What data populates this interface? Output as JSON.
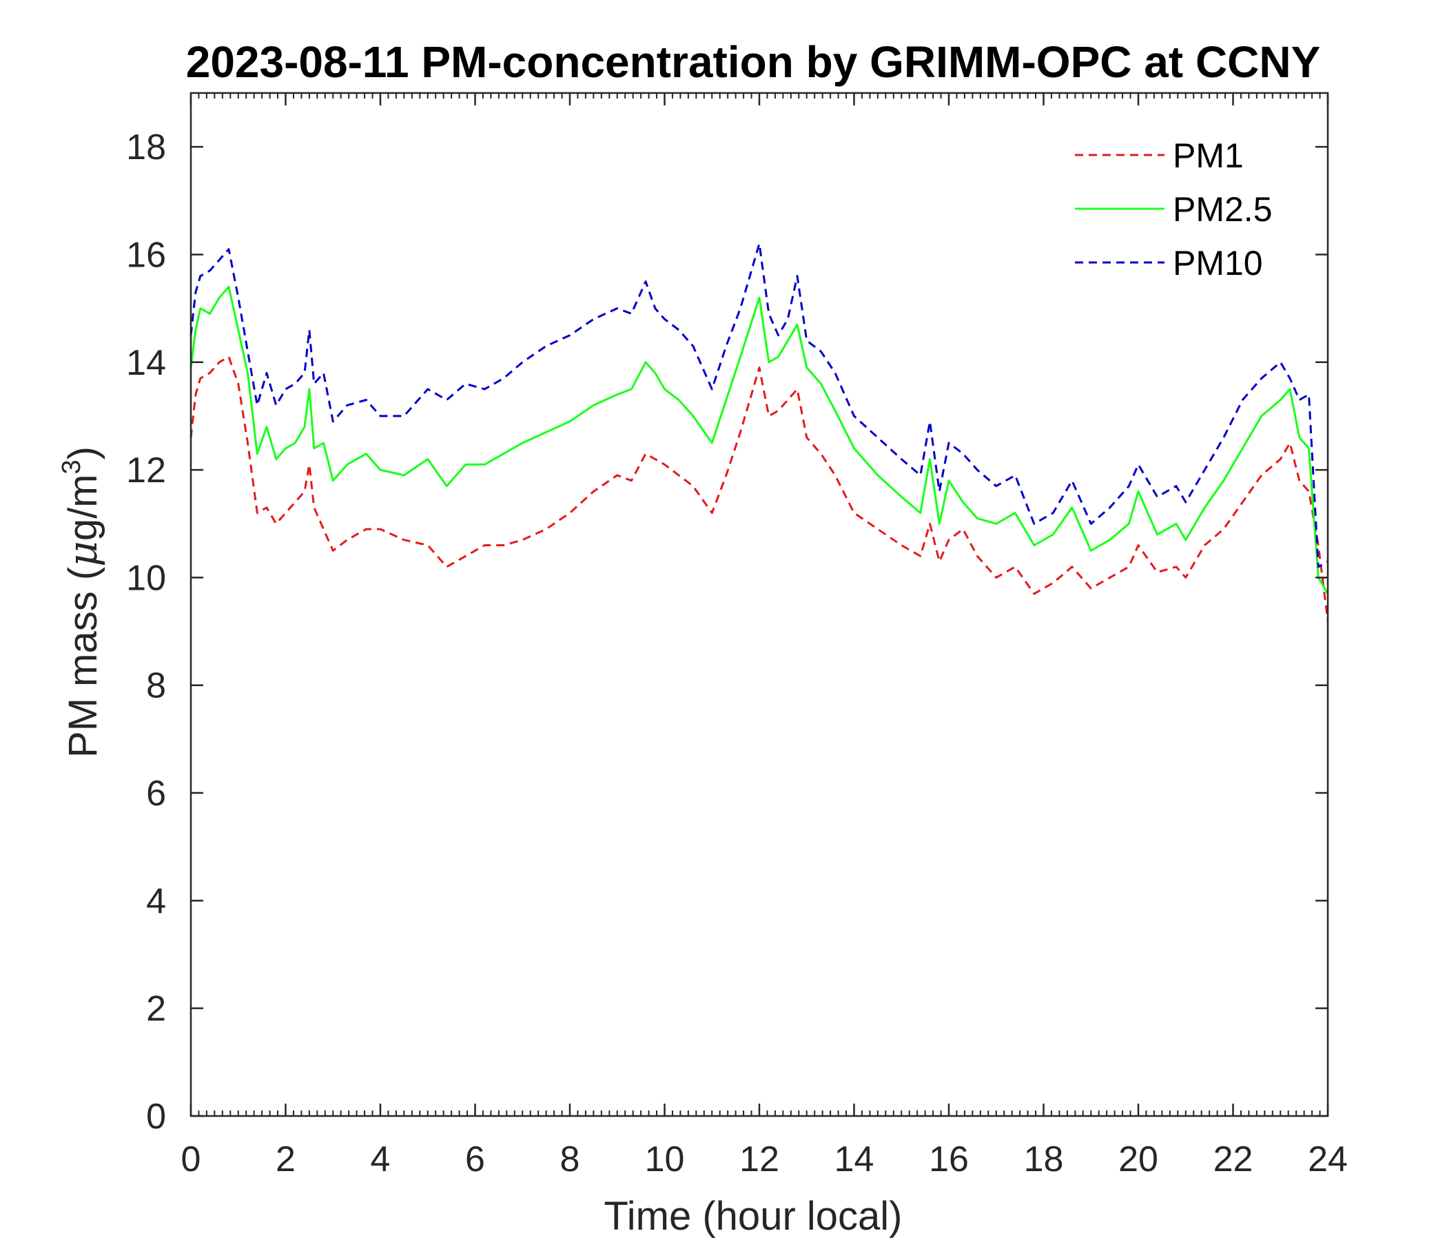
{
  "chart_data": {
    "type": "line",
    "title": "2023-08-11 PM-concentration by GRIMM-OPC at CCNY",
    "xlabel": "Time (hour local)",
    "ylabel_main": "PM mass (",
    "ylabel_mu": "μ",
    "ylabel_unit": "g/m",
    "ylabel_exp": "3",
    "ylabel_close": ")",
    "xlim": [
      0,
      24
    ],
    "ylim": [
      0,
      19
    ],
    "xticks": [
      0,
      2,
      4,
      6,
      8,
      10,
      12,
      14,
      16,
      18,
      20,
      22,
      24
    ],
    "yticks": [
      0,
      2,
      4,
      6,
      8,
      10,
      12,
      14,
      16,
      18
    ],
    "legend_position": "top-right",
    "x": [
      0,
      0.1,
      0.2,
      0.4,
      0.6,
      0.8,
      1.0,
      1.2,
      1.4,
      1.6,
      1.8,
      2.0,
      2.2,
      2.4,
      2.5,
      2.6,
      2.8,
      3.0,
      3.3,
      3.7,
      4.0,
      4.5,
      5.0,
      5.4,
      5.8,
      6.2,
      6.6,
      7.0,
      7.5,
      8.0,
      8.5,
      9.0,
      9.3,
      9.6,
      9.8,
      10.0,
      10.3,
      10.6,
      11.0,
      11.3,
      11.6,
      12.0,
      12.2,
      12.4,
      12.6,
      12.8,
      13.0,
      13.3,
      13.6,
      14.0,
      14.5,
      15.0,
      15.4,
      15.6,
      15.8,
      16.0,
      16.3,
      16.6,
      17.0,
      17.4,
      17.8,
      18.2,
      18.6,
      19.0,
      19.4,
      19.8,
      20.0,
      20.4,
      20.8,
      21.0,
      21.4,
      21.8,
      22.2,
      22.6,
      23.0,
      23.2,
      23.4,
      23.6,
      23.8,
      24.0
    ],
    "series": [
      {
        "name": "PM1",
        "color": "#e41a1c",
        "style": "dashed",
        "values": [
          12.6,
          13.4,
          13.7,
          13.8,
          14.0,
          14.1,
          13.6,
          12.5,
          11.2,
          11.3,
          11.0,
          11.2,
          11.4,
          11.6,
          12.1,
          11.3,
          10.9,
          10.5,
          10.7,
          10.9,
          10.9,
          10.7,
          10.6,
          10.2,
          10.4,
          10.6,
          10.6,
          10.7,
          10.9,
          11.2,
          11.6,
          11.9,
          11.8,
          12.3,
          12.2,
          12.1,
          11.9,
          11.7,
          11.2,
          11.9,
          12.7,
          13.9,
          13.0,
          13.1,
          13.3,
          13.5,
          12.6,
          12.3,
          11.9,
          11.2,
          10.9,
          10.6,
          10.4,
          11.0,
          10.3,
          10.7,
          10.9,
          10.4,
          10.0,
          10.2,
          9.7,
          9.9,
          10.2,
          9.8,
          10.0,
          10.2,
          10.6,
          10.1,
          10.2,
          10.0,
          10.6,
          10.9,
          11.4,
          11.9,
          12.2,
          12.5,
          11.8,
          11.6,
          10.6,
          9.2
        ]
      },
      {
        "name": "PM2.5",
        "color": "#1aff1a",
        "style": "solid",
        "values": [
          13.9,
          14.6,
          15.0,
          14.9,
          15.2,
          15.4,
          14.6,
          13.8,
          12.3,
          12.8,
          12.2,
          12.4,
          12.5,
          12.8,
          13.5,
          12.4,
          12.5,
          11.8,
          12.1,
          12.3,
          12.0,
          11.9,
          12.2,
          11.7,
          12.1,
          12.1,
          12.3,
          12.5,
          12.7,
          12.9,
          13.2,
          13.4,
          13.5,
          14.0,
          13.8,
          13.5,
          13.3,
          13.0,
          12.5,
          13.3,
          14.1,
          15.2,
          14.0,
          14.1,
          14.4,
          14.7,
          13.9,
          13.6,
          13.1,
          12.4,
          11.9,
          11.5,
          11.2,
          12.2,
          11.0,
          11.8,
          11.4,
          11.1,
          11.0,
          11.2,
          10.6,
          10.8,
          11.3,
          10.5,
          10.7,
          11.0,
          11.6,
          10.8,
          11.0,
          10.7,
          11.3,
          11.8,
          12.4,
          13.0,
          13.3,
          13.5,
          12.6,
          12.4,
          10.0,
          9.7
        ]
      },
      {
        "name": "PM10",
        "color": "#0000cc",
        "style": "dashed",
        "values": [
          14.5,
          15.3,
          15.6,
          15.7,
          15.9,
          16.1,
          15.2,
          14.2,
          13.2,
          13.8,
          13.2,
          13.5,
          13.6,
          13.8,
          14.6,
          13.6,
          13.8,
          12.9,
          13.2,
          13.3,
          13.0,
          13.0,
          13.5,
          13.3,
          13.6,
          13.5,
          13.7,
          14.0,
          14.3,
          14.5,
          14.8,
          15.0,
          14.9,
          15.5,
          15.0,
          14.8,
          14.6,
          14.3,
          13.5,
          14.3,
          15.0,
          16.2,
          14.9,
          14.5,
          14.8,
          15.6,
          14.4,
          14.2,
          13.8,
          13.0,
          12.6,
          12.2,
          11.9,
          12.9,
          11.6,
          12.5,
          12.3,
          12.0,
          11.7,
          11.9,
          11.0,
          11.2,
          11.8,
          11.0,
          11.3,
          11.7,
          12.1,
          11.5,
          11.7,
          11.4,
          12.0,
          12.6,
          13.3,
          13.7,
          14.0,
          13.7,
          13.3,
          13.4,
          10.2,
          10.3
        ]
      }
    ]
  }
}
